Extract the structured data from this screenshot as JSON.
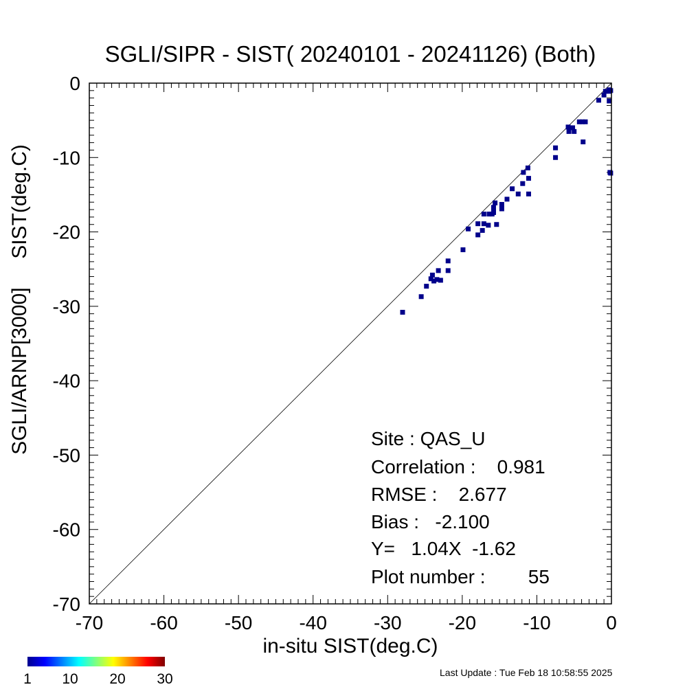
{
  "chart_data": {
    "type": "scatter",
    "title": "SGLI/SIPR - SIST( 20240101 - 20241126) (Both)",
    "xlabel": "in-situ SIST(deg.C)",
    "ylabel": "SGLI/ARNP[3000]     SIST(deg.C)",
    "xlim": [
      -70,
      0
    ],
    "ylim": [
      -70,
      0
    ],
    "xticks": [
      -70,
      -60,
      -50,
      -40,
      -30,
      -20,
      -10,
      0
    ],
    "yticks": [
      -70,
      -60,
      -50,
      -40,
      -30,
      -20,
      -10,
      0
    ],
    "reference_line": "y=x",
    "series": [
      {
        "color": "#00008b",
        "points": [
          [
            -28.0,
            -30.8
          ],
          [
            -25.5,
            -28.7
          ],
          [
            -24.8,
            -27.3
          ],
          [
            -24.2,
            -26.3
          ],
          [
            -24.0,
            -25.8
          ],
          [
            -23.8,
            -26.6
          ],
          [
            -23.4,
            -26.4
          ],
          [
            -23.2,
            -25.2
          ],
          [
            -22.9,
            -26.5
          ],
          [
            -21.9,
            -23.9
          ],
          [
            -21.9,
            -25.2
          ],
          [
            -19.9,
            -22.4
          ],
          [
            -19.2,
            -19.6
          ],
          [
            -17.9,
            -20.4
          ],
          [
            -17.9,
            -18.9
          ],
          [
            -17.3,
            -19.8
          ],
          [
            -17.1,
            -17.6
          ],
          [
            -17.1,
            -18.9
          ],
          [
            -16.5,
            -19.1
          ],
          [
            -16.4,
            -17.6
          ],
          [
            -16.0,
            -17.6
          ],
          [
            -15.8,
            -16.7
          ],
          [
            -15.8,
            -17.4
          ],
          [
            -15.8,
            -17.2
          ],
          [
            -15.6,
            -16.1
          ],
          [
            -15.4,
            -19.0
          ],
          [
            -14.7,
            -16.3
          ],
          [
            -14.7,
            -16.9
          ],
          [
            -14.0,
            -15.6
          ],
          [
            -13.3,
            -14.2
          ],
          [
            -12.5,
            -14.9
          ],
          [
            -11.9,
            -13.5
          ],
          [
            -11.8,
            -12.0
          ],
          [
            -11.2,
            -11.4
          ],
          [
            -11.1,
            -12.8
          ],
          [
            -11.1,
            -14.9
          ],
          [
            -7.5,
            -8.7
          ],
          [
            -7.5,
            -10.0
          ],
          [
            -5.8,
            -5.9
          ],
          [
            -5.7,
            -6.5
          ],
          [
            -5.2,
            -6.0
          ],
          [
            -5.0,
            -6.5
          ],
          [
            -4.3,
            -5.2
          ],
          [
            -3.9,
            -5.2
          ],
          [
            -3.8,
            -7.9
          ],
          [
            -3.5,
            -5.2
          ],
          [
            -1.7,
            -2.3
          ],
          [
            -1.0,
            -1.6
          ],
          [
            -0.8,
            -1.1
          ],
          [
            -0.3,
            -0.9
          ],
          [
            -0.3,
            -1.1
          ],
          [
            -0.3,
            -2.4
          ],
          [
            -0.2,
            -12.0
          ],
          [
            -0.1,
            -12.1
          ],
          [
            -0.1,
            -1.0
          ]
        ]
      }
    ],
    "colorbar": {
      "min": 1,
      "max": 30,
      "ticks": [
        "1",
        "10",
        "20",
        "30"
      ]
    }
  },
  "stats": {
    "site": "Site : QAS_U",
    "correlation": "Correlation :    0.981",
    "rmse": "RMSE :    2.677",
    "bias": "Bias :   -2.100",
    "fit": "Y=   1.04X  -1.62",
    "plot_number": "Plot number :        55"
  },
  "last_update": "Last Update : Tue Feb 18 10:58:55 2025"
}
